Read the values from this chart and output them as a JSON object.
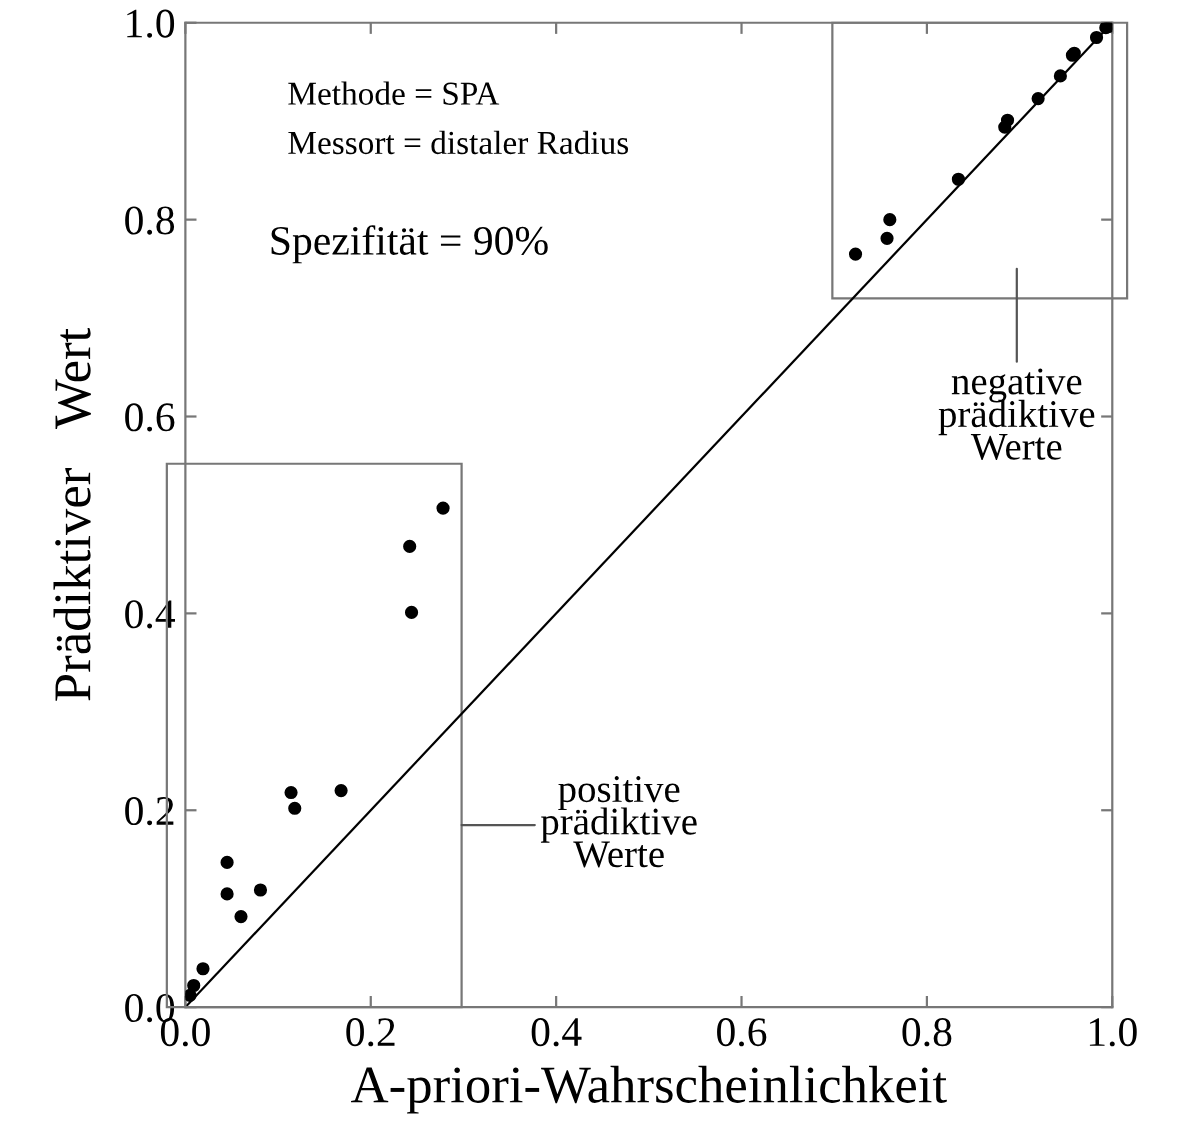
{
  "chart_data": {
    "type": "scatter",
    "xlabel": "A-priori-Wahrscheinlichkeit",
    "ylabel": "Prädiktiver   Wert",
    "xlim": [
      0,
      1
    ],
    "ylim": [
      0,
      1
    ],
    "xticks": [
      {
        "value": 0,
        "label": "0.0"
      },
      {
        "value": 0.2,
        "label": "0.2"
      },
      {
        "value": 0.4,
        "label": "0.4"
      },
      {
        "value": 0.6,
        "label": "0.6"
      },
      {
        "value": 0.8,
        "label": "0.8"
      },
      {
        "value": 1,
        "label": "1.0"
      }
    ],
    "yticks": [
      {
        "value": 0,
        "label": "0.0"
      },
      {
        "value": 0.2,
        "label": "0.2"
      },
      {
        "value": 0.4,
        "label": "0.4"
      },
      {
        "value": 0.6,
        "label": "0.6"
      },
      {
        "value": 0.8,
        "label": "0.8"
      },
      {
        "value": 1,
        "label": "1.0"
      }
    ],
    "grid": false,
    "legend": false,
    "series": [
      {
        "marker": "circle",
        "color": "#000000",
        "x": [
          0.005,
          0.009,
          0.019,
          0.045,
          0.045,
          0.06,
          0.081,
          0.114,
          0.118,
          0.168,
          0.242,
          0.244,
          0.278
        ],
        "values": [
          0.012,
          0.022,
          0.039,
          0.115,
          0.147,
          0.092,
          0.119,
          0.218,
          0.202,
          0.22,
          0.468,
          0.401,
          0.507
        ]
      },
      {
        "marker": "circle",
        "color": "#000000",
        "x": [
          0.723,
          0.757,
          0.76,
          0.834,
          0.884,
          0.887,
          0.92,
          0.944,
          0.957,
          0.959,
          0.983,
          0.993,
          0.996
        ],
        "values": [
          0.765,
          0.781,
          0.8,
          0.841,
          0.894,
          0.901,
          0.923,
          0.946,
          0.967,
          0.969,
          0.985,
          0.995,
          0.996
        ]
      },
      {
        "type": "line",
        "color": "#000000",
        "marker": "none",
        "x": [
          0,
          1
        ],
        "values": [
          0,
          1
        ]
      }
    ],
    "annotations": [
      "Methode = SPA",
      "Messort = distaler Radius",
      "Spezifität = 90%",
      "positive\nprädiktive\nWerte",
      "negative\nprädiktive\nWerte"
    ]
  }
}
